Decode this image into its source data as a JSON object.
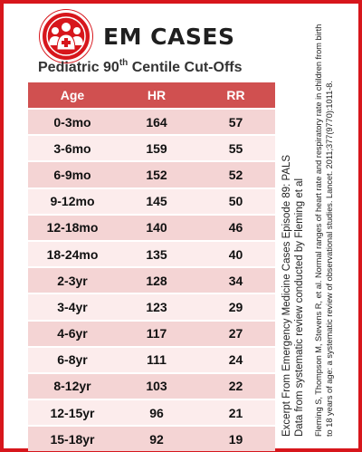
{
  "brand": {
    "name": "EM CASES",
    "logo_icon": "medical-team-badge-icon"
  },
  "title": {
    "prefix": "Pediatric 90",
    "sup": "th",
    "suffix": " Centile Cut-Offs"
  },
  "colors": {
    "accent": "#d7161c",
    "header_row": "#d05050",
    "row_dark": "#f4d4d4",
    "row_light": "#fcecec"
  },
  "table": {
    "headers": [
      "Age",
      "HR",
      "RR"
    ],
    "rows": [
      [
        "0-3mo",
        "164",
        "57"
      ],
      [
        "3-6mo",
        "159",
        "55"
      ],
      [
        "6-9mo",
        "152",
        "52"
      ],
      [
        "9-12mo",
        "145",
        "50"
      ],
      [
        "12-18mo",
        "140",
        "46"
      ],
      [
        "18-24mo",
        "135",
        "40"
      ],
      [
        "2-3yr",
        "128",
        "34"
      ],
      [
        "3-4yr",
        "123",
        "29"
      ],
      [
        "4-6yr",
        "117",
        "27"
      ],
      [
        "6-8yr",
        "111",
        "24"
      ],
      [
        "8-12yr",
        "103",
        "22"
      ],
      [
        "12-15yr",
        "96",
        "21"
      ],
      [
        "15-18yr",
        "92",
        "19"
      ]
    ]
  },
  "side_note": {
    "line1": "Excerpt From Emergency Medicine Cases Episode 89: PALS",
    "line2": "Data from systematic review conducted by Fleming et al",
    "line3": "Fleming S, Thompson M, Stevens R, et al. Normal ranges of heart rate and respiratory rate in children from birth",
    "line4": "to 18 years of age: a systematic review of observational studies. Lancet. 2011;377(9770):1011-8."
  }
}
